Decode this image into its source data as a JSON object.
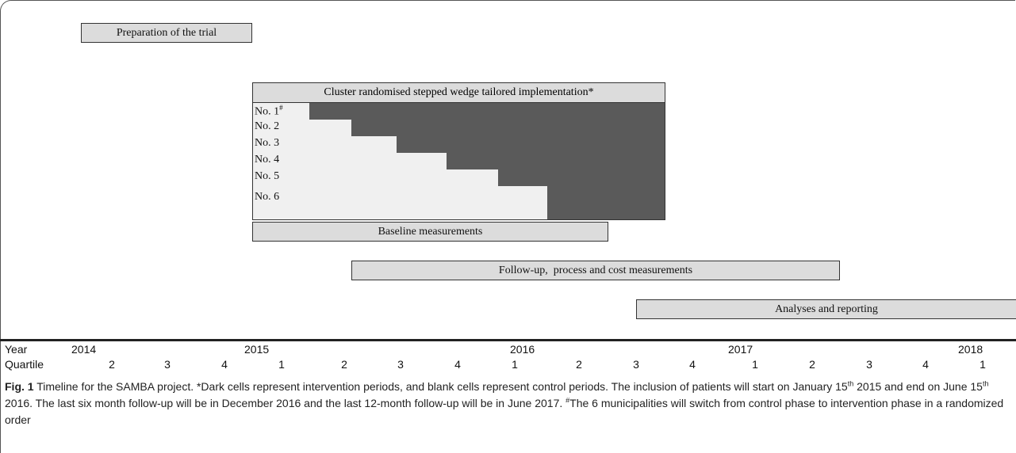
{
  "bars": {
    "preparation": "Preparation of the trial",
    "baseline": "Baseline measurements",
    "followup": "Follow-up,  process and cost measurements",
    "analyses": "Analyses and reporting"
  },
  "wedge": {
    "title": "Cluster randomised stepped wedge tailored implementation*",
    "rows": [
      {
        "label": "No. 1",
        "mark": "#"
      },
      {
        "label": "No. 2",
        "mark": ""
      },
      {
        "label": "No. 3",
        "mark": ""
      },
      {
        "label": "No. 4",
        "mark": ""
      },
      {
        "label": "No. 5",
        "mark": ""
      },
      {
        "label": "No. 6",
        "mark": ""
      }
    ],
    "colors": {
      "intervention": "#5a5a5a",
      "control": "#f0f0f0",
      "header": "#dcdcdc"
    }
  },
  "axis": {
    "year_label": "Year",
    "quartile_label": "Quartile",
    "years": [
      "2014",
      "2015",
      "2016",
      "2017",
      "2018"
    ],
    "quartiles": [
      "2",
      "3",
      "4",
      "1",
      "2",
      "3",
      "4",
      "1",
      "2",
      "3",
      "4",
      "1",
      "2",
      "3",
      "4",
      "1"
    ]
  },
  "caption": {
    "fig_label": "Fig. 1",
    "part1": " Timeline for the SAMBA project. *Dark cells represent intervention periods, and blank cells represent control periods. The inclusion of patients will start on January 15",
    "sup1": "th",
    "part2": " 2015 and end on June 15",
    "sup2": "th",
    "part3": " 2016. The last six month follow-up will be in December 2016 and the last 12-month follow-up will be in June 2017. ",
    "sup3": "#",
    "part4": "The 6 municipalities will switch from control phase to intervention phase in a randomized order"
  }
}
